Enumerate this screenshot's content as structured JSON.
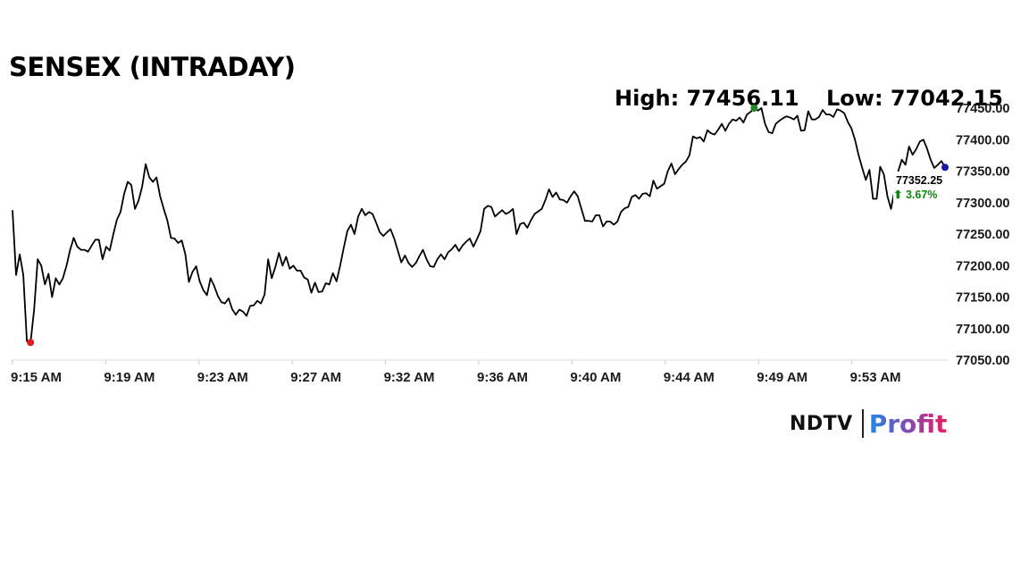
{
  "chart_data": {
    "type": "line",
    "title": "SENSEX (INTRADAY)",
    "high_label": "High: 77456.11",
    "low_label": "Low: 77042.15",
    "last_value_label": "77352.25",
    "change_label": "⬆ 3.67%",
    "yticks": [
      "77050.00",
      "77100.00",
      "77150.00",
      "77200.00",
      "77250.00",
      "77300.00",
      "77350.00",
      "77400.00",
      "77450.00"
    ],
    "xticks": [
      "9:15 AM",
      "9:19 AM",
      "9:23 AM",
      "9:27 AM",
      "9:32 AM",
      "9:36 AM",
      "9:40 AM",
      "9:44 AM",
      "9:49 AM",
      "9:53 AM"
    ],
    "ylim": [
      77050,
      77450
    ],
    "grid": false,
    "series": [
      {
        "values": [
          77288,
          77185,
          77218,
          77185,
          77080,
          77078,
          77130,
          77210,
          77200,
          77170,
          77187,
          77150,
          77180,
          77170,
          77180,
          77200,
          77225,
          77244,
          77230,
          77225,
          77225,
          77222,
          77232,
          77241,
          77241,
          77210,
          77230,
          77224,
          77250,
          77273,
          77285,
          77314,
          77333,
          77328,
          77290,
          77303,
          77325,
          77361,
          77340,
          77333,
          77340,
          77310,
          77290,
          77272,
          77244,
          77243,
          77236,
          77240,
          77218,
          77174,
          77190,
          77199,
          77175,
          77161,
          77153,
          77180,
          77168,
          77152,
          77142,
          77140,
          77148,
          77131,
          77122,
          77130,
          77127,
          77120,
          77136,
          77137,
          77144,
          77140,
          77154,
          77210,
          77180,
          77198,
          77220,
          77200,
          77214,
          77195,
          77200,
          77192,
          77192,
          77181,
          77178,
          77157,
          77173,
          77158,
          77159,
          77172,
          77170,
          77188,
          77175,
          77200,
          77228,
          77255,
          77265,
          77250,
          77278,
          77290,
          77280,
          77285,
          77282,
          77268,
          77253,
          77247,
          77253,
          77258,
          77243,
          77224,
          77205,
          77216,
          77204,
          77198,
          77204,
          77215,
          77225,
          77210,
          77199,
          77198,
          77210,
          77218,
          77210,
          77221,
          77226,
          77233,
          77223,
          77232,
          77238,
          77243,
          77230,
          77242,
          77255,
          77290,
          77295,
          77293,
          77278,
          77283,
          77288,
          77282,
          77285,
          77290,
          77250,
          77266,
          77268,
          77260,
          77272,
          77282,
          77286,
          77290,
          77304,
          77321,
          77309,
          77316,
          77305,
          77304,
          77300,
          77310,
          77318,
          77310,
          77290,
          77271,
          77271,
          77270,
          77280,
          77280,
          77262,
          77270,
          77270,
          77265,
          77270,
          77285,
          77291,
          77293,
          77309,
          77312,
          77306,
          77314,
          77315,
          77310,
          77335,
          77322,
          77326,
          77330,
          77350,
          77362,
          77345,
          77353,
          77360,
          77365,
          77375,
          77405,
          77402,
          77404,
          77397,
          77415,
          77410,
          77408,
          77416,
          77425,
          77414,
          77425,
          77432,
          77430,
          77435,
          77427,
          77440,
          77444,
          77450,
          77446,
          77450,
          77425,
          77412,
          77410,
          77425,
          77430,
          77434,
          77437,
          77435,
          77432,
          77438,
          77414,
          77415,
          77445,
          77432,
          77432,
          77436,
          77447,
          77440,
          77440,
          77436,
          77448,
          77446,
          77442,
          77428,
          77418,
          77400,
          77375,
          77355,
          77336,
          77352,
          77306,
          77306,
          77357,
          77345,
          77310,
          77290,
          77320,
          77350,
          77368,
          77360,
          77389,
          77376,
          77385,
          77397,
          77400,
          77386,
          77368,
          77355,
          77360,
          77366,
          77356
        ],
        "color": "#000000"
      }
    ],
    "markers": {
      "low_color": "#e31b1b",
      "high_color": "#1f8a1f",
      "last_color": "#1a1aa8"
    }
  },
  "brand": {
    "ndtv": "NDTV",
    "profit": "Profit"
  }
}
